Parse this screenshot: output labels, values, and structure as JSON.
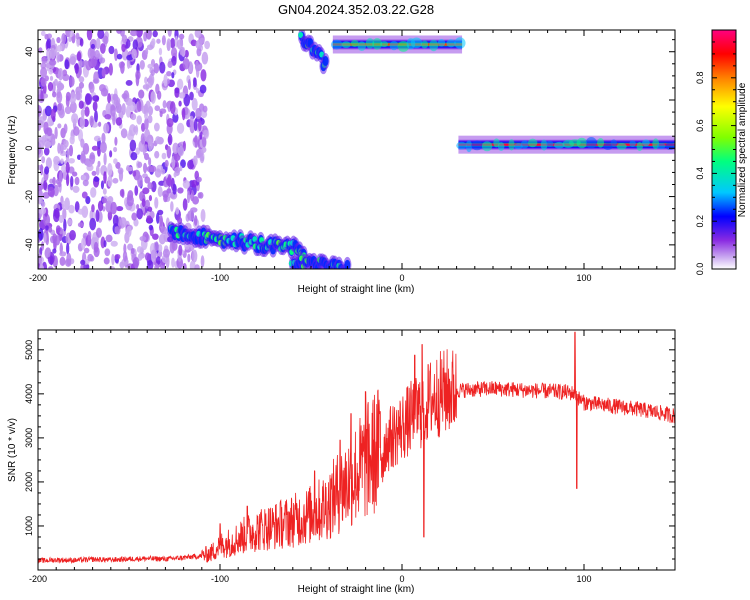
{
  "title": "GN04.2024.352.03.22.G28",
  "chart_data": [
    {
      "type": "heatmap",
      "title": "GN04.2024.352.03.22.G28",
      "xlabel": "Height of straight line (km)",
      "ylabel": "Frequency (Hz)",
      "xlim": [
        -200,
        150
      ],
      "ylim": [
        -50,
        49
      ],
      "x_ticks": [
        -200,
        -100,
        0,
        100
      ],
      "y_ticks": [
        -40,
        -20,
        0,
        20,
        40
      ],
      "colorbar": {
        "label": "Normalized spectral amplitude",
        "range": [
          0,
          1
        ],
        "ticks": [
          0.0,
          0.2,
          0.4,
          0.6,
          0.8
        ],
        "colors": [
          "#ffffff",
          "#c9a8f0",
          "#8a2be2",
          "#0000ff",
          "#00c8ff",
          "#00ff80",
          "#80ff00",
          "#ffff00",
          "#ff8000",
          "#ff0000",
          "#ff0080"
        ]
      },
      "features": [
        {
          "x_range": [
            -200,
            -107
          ],
          "freq_range": [
            -50,
            49
          ],
          "amplitude": 0.15,
          "kind": "noise"
        },
        {
          "x_range": [
            -127,
            -54
          ],
          "freq_center": [
            -35,
            -42
          ],
          "amplitude": 0.45,
          "kind": "band"
        },
        {
          "x_range": [
            -60,
            -30
          ],
          "freq_center": [
            -47,
            -50
          ],
          "amplitude": 0.25,
          "kind": "band"
        },
        {
          "x_range": [
            -55,
            -42
          ],
          "freq_center": [
            46,
            35
          ],
          "amplitude": 0.3,
          "kind": "band"
        },
        {
          "x_range": [
            -38,
            33
          ],
          "freq_center": [
            42,
            44
          ],
          "amplitude": 0.85,
          "kind": "line"
        },
        {
          "x_range": [
            31,
            150
          ],
          "freq_center": [
            1.5,
            1.5
          ],
          "amplitude": 0.95,
          "kind": "line"
        }
      ]
    },
    {
      "type": "line",
      "title": "",
      "xlabel": "Height of straight line (km)",
      "ylabel": "SNR (10 * v/v)",
      "xlim": [
        -200,
        150
      ],
      "ylim": [
        0,
        5450
      ],
      "x_ticks": [
        -200,
        -100,
        0,
        100
      ],
      "y_ticks": [
        1000,
        2000,
        3000,
        4000,
        5000
      ],
      "color": "#ee2222",
      "series": [
        {
          "x": [
            -200,
            -190,
            -180,
            -170,
            -160,
            -150,
            -140,
            -130,
            -120,
            -110,
            -105,
            -100,
            -95,
            -90,
            -85,
            -80,
            -75,
            -70,
            -65,
            -60,
            -55,
            -50,
            -45,
            -40,
            -35,
            -30,
            -25,
            -20,
            -15,
            -10,
            -5,
            0,
            5,
            10,
            12,
            15,
            20,
            25,
            30,
            40,
            50,
            60,
            70,
            80,
            90,
            96,
            97,
            100,
            110,
            120,
            130,
            140,
            150
          ],
          "values": [
            210,
            230,
            220,
            240,
            230,
            250,
            260,
            250,
            280,
            320,
            380,
            560,
            620,
            720,
            820,
            900,
            960,
            1000,
            1060,
            1120,
            1180,
            1260,
            1360,
            1520,
            1760,
            1980,
            2200,
            2420,
            2650,
            2850,
            3050,
            3250,
            3450,
            3620,
            3680,
            3850,
            3980,
            4050,
            4080,
            4100,
            4120,
            4100,
            4080,
            4060,
            4040,
            4000,
            3900,
            3800,
            3750,
            3700,
            3650,
            3580,
            3500
          ],
          "spikes": [
            {
              "x": -100,
              "value": 1050
            },
            {
              "x": -85,
              "value": 1450
            },
            {
              "x": -48,
              "value": 2250
            },
            {
              "x": -34,
              "value": 2950
            },
            {
              "x": -28,
              "value": 3550
            },
            {
              "x": -20,
              "value": 4050
            },
            {
              "x": -12,
              "value": 3600
            },
            {
              "x": 7,
              "value": 4880
            },
            {
              "x": 11,
              "value": 5120
            },
            {
              "x": 12,
              "value": 750
            },
            {
              "x": 95,
              "value": 5400
            },
            {
              "x": 96,
              "value": 1850
            }
          ]
        }
      ]
    }
  ]
}
